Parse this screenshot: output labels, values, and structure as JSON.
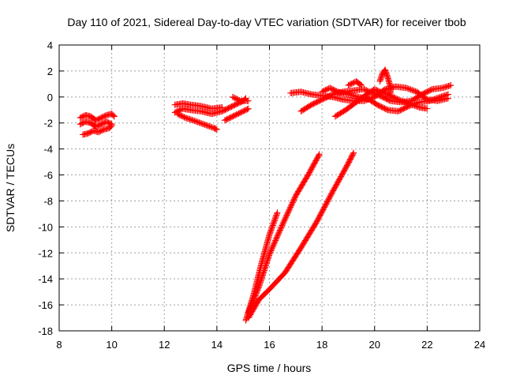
{
  "chart_data": {
    "type": "scatter",
    "title": "Day 110 of 2021, Sidereal Day-to-day VTEC variation (SDTVAR) for receiver tbob",
    "xlabel": "GPS time / hours",
    "ylabel": "SDTVAR / TECUs",
    "xlim": [
      8,
      24
    ],
    "ylim": [
      -18,
      4
    ],
    "xticks": [
      "8",
      "10",
      "12",
      "14",
      "16",
      "18",
      "20",
      "22",
      "24"
    ],
    "yticks": [
      "-18",
      "-16",
      "-14",
      "-12",
      "-10",
      "-8",
      "-6",
      "-4",
      "-2",
      "0",
      "2",
      "4"
    ],
    "grid": true,
    "marker": "plus",
    "color": "#ff0000",
    "series": [
      {
        "segments": [
          [
            [
              8.8,
              -1.6
            ],
            [
              9.0,
              -1.4
            ],
            [
              9.2,
              -1.5
            ],
            [
              9.4,
              -1.8
            ],
            [
              9.6,
              -1.6
            ],
            [
              9.8,
              -1.4
            ],
            [
              10.0,
              -1.3
            ],
            [
              10.1,
              -1.5
            ]
          ],
          [
            [
              8.8,
              -2.1
            ],
            [
              9.0,
              -1.9
            ],
            [
              9.2,
              -2.0
            ],
            [
              9.4,
              -2.3
            ],
            [
              9.6,
              -2.1
            ],
            [
              9.8,
              -1.9
            ],
            [
              10.0,
              -2.1
            ]
          ],
          [
            [
              8.9,
              -2.9
            ],
            [
              9.1,
              -2.8
            ],
            [
              9.3,
              -2.6
            ],
            [
              9.5,
              -2.7
            ],
            [
              9.7,
              -2.5
            ],
            [
              9.9,
              -2.4
            ],
            [
              10.0,
              -2.2
            ]
          ],
          [
            [
              12.4,
              -0.6
            ],
            [
              12.7,
              -0.5
            ],
            [
              13.0,
              -0.6
            ],
            [
              13.4,
              -0.7
            ],
            [
              13.8,
              -0.9
            ],
            [
              14.2,
              -0.8
            ]
          ],
          [
            [
              12.4,
              -1.2
            ],
            [
              12.7,
              -0.9
            ],
            [
              13.0,
              -1.0
            ],
            [
              13.4,
              -1.1
            ],
            [
              13.8,
              -1.3
            ],
            [
              14.2,
              -1.1
            ],
            [
              14.6,
              -0.7
            ],
            [
              15.0,
              -0.3
            ],
            [
              15.1,
              -0.1
            ]
          ],
          [
            [
              12.5,
              -1.3
            ],
            [
              12.8,
              -1.6
            ],
            [
              13.1,
              -1.8
            ],
            [
              13.5,
              -2.1
            ],
            [
              13.9,
              -2.4
            ],
            [
              14.0,
              -2.5
            ]
          ],
          [
            [
              14.3,
              -1.8
            ],
            [
              14.7,
              -1.4
            ],
            [
              15.0,
              -1.1
            ],
            [
              15.2,
              -0.9
            ]
          ],
          [
            [
              14.6,
              0.0
            ],
            [
              14.9,
              -0.3
            ],
            [
              15.2,
              -0.3
            ]
          ],
          [
            [
              16.8,
              0.3
            ],
            [
              17.2,
              0.4
            ],
            [
              17.6,
              0.2
            ],
            [
              18.0,
              0.1
            ],
            [
              18.4,
              0.0
            ],
            [
              18.8,
              -0.2
            ],
            [
              19.2,
              -0.3
            ],
            [
              19.6,
              -0.3
            ],
            [
              20.0,
              0.0
            ],
            [
              20.4,
              0.6
            ],
            [
              20.8,
              0.8
            ],
            [
              21.2,
              0.7
            ],
            [
              21.6,
              0.4
            ],
            [
              22.0,
              -0.2
            ],
            [
              22.4,
              -0.3
            ],
            [
              22.8,
              -0.1
            ]
          ],
          [
            [
              17.2,
              -1.1
            ],
            [
              17.6,
              -0.6
            ],
            [
              18.0,
              -0.2
            ],
            [
              18.4,
              0.2
            ],
            [
              18.8,
              0.4
            ],
            [
              19.2,
              0.5
            ],
            [
              19.6,
              0.6
            ],
            [
              19.9,
              0.3
            ],
            [
              20.2,
              0.1
            ],
            [
              20.6,
              -0.3
            ],
            [
              21.0,
              -0.4
            ],
            [
              21.4,
              -0.3
            ],
            [
              21.8,
              0.2
            ],
            [
              22.2,
              0.6
            ],
            [
              22.6,
              0.7
            ],
            [
              22.9,
              0.9
            ]
          ],
          [
            [
              18.0,
              0.4
            ],
            [
              18.3,
              0.7
            ],
            [
              18.6,
              0.4
            ],
            [
              19.0,
              0.2
            ],
            [
              19.4,
              0.0
            ],
            [
              19.8,
              -0.2
            ],
            [
              20.1,
              -0.6
            ],
            [
              20.5,
              -1.0
            ],
            [
              20.9,
              -1.1
            ],
            [
              21.3,
              -0.7
            ],
            [
              21.7,
              -0.4
            ],
            [
              22.1,
              -0.3
            ],
            [
              22.5,
              0.0
            ],
            [
              22.8,
              0.2
            ]
          ],
          [
            [
              18.5,
              -1.5
            ],
            [
              18.9,
              -1.0
            ],
            [
              19.3,
              -0.4
            ],
            [
              19.7,
              0.2
            ],
            [
              20.0,
              0.6
            ],
            [
              20.2,
              0.4
            ],
            [
              20.5,
              0.2
            ],
            [
              20.9,
              -0.2
            ],
            [
              21.3,
              -0.5
            ],
            [
              21.7,
              -0.8
            ],
            [
              22.0,
              -0.9
            ]
          ],
          [
            [
              20.2,
              1.2
            ],
            [
              20.3,
              1.8
            ],
            [
              20.4,
              2.1
            ],
            [
              20.5,
              1.5
            ],
            [
              20.6,
              0.8
            ],
            [
              20.6,
              0.3
            ]
          ],
          [
            [
              19.0,
              0.9
            ],
            [
              19.3,
              1.2
            ],
            [
              19.5,
              0.9
            ]
          ],
          [
            [
              15.1,
              -17.2
            ],
            [
              15.4,
              -15.2
            ],
            [
              15.7,
              -12.8
            ],
            [
              16.0,
              -10.6
            ],
            [
              16.3,
              -8.9
            ]
          ],
          [
            [
              15.2,
              -16.6
            ],
            [
              15.6,
              -14.6
            ],
            [
              16.0,
              -12.1
            ],
            [
              16.5,
              -9.8
            ],
            [
              17.0,
              -7.6
            ],
            [
              17.5,
              -5.9
            ],
            [
              17.9,
              -4.4
            ]
          ],
          [
            [
              15.2,
              -17.0
            ],
            [
              15.6,
              -15.6
            ],
            [
              16.0,
              -14.8
            ],
            [
              16.6,
              -13.5
            ],
            [
              17.2,
              -11.6
            ],
            [
              17.8,
              -9.6
            ],
            [
              18.4,
              -7.3
            ],
            [
              19.0,
              -5.1
            ],
            [
              19.2,
              -4.3
            ]
          ]
        ]
      }
    ]
  }
}
